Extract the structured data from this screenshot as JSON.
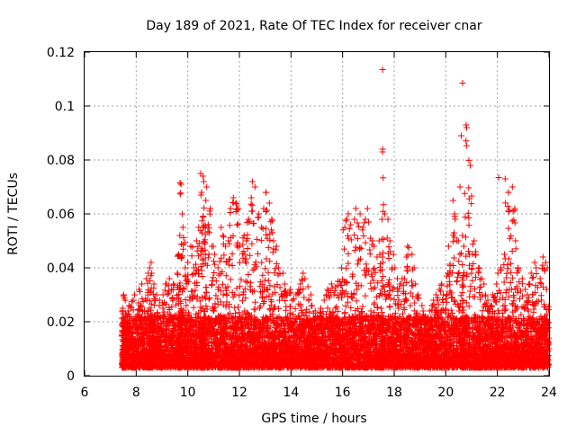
{
  "chart_data": {
    "type": "scatter",
    "title": "Day 189 of 2021, Rate Of TEC Index for receiver cnar",
    "xlabel": "GPS time / hours",
    "ylabel": "ROTI / TECUs",
    "xlim": [
      6,
      24
    ],
    "ylim": [
      0,
      0.12
    ],
    "x_ticks": [
      "6",
      "8",
      "10",
      "12",
      "14",
      "16",
      "18",
      "20",
      "22",
      "24"
    ],
    "y_ticks": [
      "0",
      "0.02",
      "0.04",
      "0.06",
      "0.08",
      "0.1",
      "0.12"
    ],
    "grid": true,
    "marker": "plus",
    "color": "#ff0000",
    "series": [
      {
        "x": [
          7.45,
          7.5,
          7.55,
          7.6,
          7.7,
          7.8,
          7.9,
          8.0,
          8.1,
          8.2,
          8.3,
          8.4,
          8.5,
          8.55,
          8.6,
          8.65,
          8.7,
          8.8,
          8.9,
          9.0,
          9.1,
          9.2,
          9.3,
          9.4,
          9.5,
          9.6,
          9.65,
          9.7,
          9.75,
          9.8,
          9.9,
          10.0,
          10.1,
          10.2,
          10.3,
          10.4,
          10.5,
          10.55,
          10.6,
          10.65,
          10.7,
          10.8,
          10.9,
          11.0,
          11.1,
          11.2,
          11.3,
          11.4,
          11.5,
          11.6,
          11.7,
          11.8,
          11.9,
          12.0,
          12.1,
          12.2,
          12.3,
          12.4,
          12.5,
          12.6,
          12.7,
          12.8,
          12.9,
          13.0,
          13.1,
          13.2,
          13.3,
          13.4,
          13.5,
          13.6,
          13.7,
          13.8,
          13.9,
          14.0,
          14.1,
          14.2,
          14.3,
          14.4,
          14.5,
          14.6,
          14.7,
          14.8,
          14.9,
          15.0,
          15.1,
          15.2,
          15.3,
          15.4,
          15.5,
          15.6,
          15.7,
          15.8,
          15.9,
          16.0,
          16.1,
          16.2,
          16.3,
          16.4,
          16.5,
          16.6,
          16.7,
          16.8,
          16.9,
          17.0,
          17.1,
          17.2,
          17.3,
          17.4,
          17.5,
          17.55,
          17.6,
          17.7,
          17.8,
          17.9,
          18.0,
          18.1,
          18.2,
          18.3,
          18.4,
          18.5,
          18.6,
          18.7,
          18.8,
          18.9,
          19.0,
          19.1,
          19.2,
          19.3,
          19.4,
          19.5,
          19.6,
          19.7,
          19.8,
          19.9,
          20.0,
          20.1,
          20.2,
          20.3,
          20.4,
          20.5,
          20.6,
          20.65,
          20.7,
          20.8,
          20.9,
          21.0,
          21.1,
          21.2,
          21.3,
          21.4,
          21.5,
          21.6,
          21.7,
          21.8,
          21.9,
          22.0,
          22.1,
          22.2,
          22.3,
          22.4,
          22.5,
          22.6,
          22.7,
          22.8,
          22.9,
          23.0,
          23.1,
          23.2,
          23.3,
          23.4,
          23.5,
          23.6,
          23.7,
          23.8,
          23.9,
          24.0
        ],
        "y_max": [
          0.025,
          0.03,
          0.028,
          0.024,
          0.026,
          0.028,
          0.03,
          0.027,
          0.032,
          0.034,
          0.036,
          0.038,
          0.04,
          0.042,
          0.038,
          0.034,
          0.03,
          0.026,
          0.028,
          0.03,
          0.034,
          0.036,
          0.032,
          0.034,
          0.038,
          0.045,
          0.052,
          0.071,
          0.06,
          0.055,
          0.04,
          0.042,
          0.048,
          0.04,
          0.05,
          0.055,
          0.068,
          0.074,
          0.072,
          0.065,
          0.07,
          0.062,
          0.048,
          0.045,
          0.04,
          0.055,
          0.052,
          0.048,
          0.05,
          0.062,
          0.066,
          0.064,
          0.062,
          0.048,
          0.052,
          0.05,
          0.058,
          0.066,
          0.072,
          0.07,
          0.06,
          0.055,
          0.062,
          0.068,
          0.064,
          0.058,
          0.05,
          0.048,
          0.04,
          0.038,
          0.034,
          0.03,
          0.032,
          0.028,
          0.03,
          0.032,
          0.034,
          0.038,
          0.036,
          0.033,
          0.03,
          0.026,
          0.024,
          0.022,
          0.025,
          0.028,
          0.03,
          0.032,
          0.034,
          0.03,
          0.033,
          0.035,
          0.04,
          0.055,
          0.058,
          0.06,
          0.056,
          0.058,
          0.062,
          0.06,
          0.055,
          0.058,
          0.062,
          0.057,
          0.05,
          0.048,
          0.044,
          0.05,
          0.058,
          0.084,
          0.06,
          0.058,
          0.05,
          0.045,
          0.04,
          0.036,
          0.034,
          0.036,
          0.044,
          0.048,
          0.045,
          0.04,
          0.034,
          0.03,
          0.026,
          0.024,
          0.022,
          0.024,
          0.026,
          0.028,
          0.03,
          0.032,
          0.034,
          0.03,
          0.038,
          0.048,
          0.065,
          0.06,
          0.05,
          0.045,
          0.052,
          0.048,
          0.093,
          0.092,
          0.078,
          0.05,
          0.046,
          0.04,
          0.036,
          0.034,
          0.03,
          0.028,
          0.026,
          0.03,
          0.034,
          0.038,
          0.04,
          0.045,
          0.073,
          0.068,
          0.07,
          0.062,
          0.05,
          0.04,
          0.036,
          0.032,
          0.03,
          0.034,
          0.038,
          0.042,
          0.04,
          0.036,
          0.044,
          0.042,
          0.04,
          0.043,
          0.045,
          0.048
        ],
        "outliers": [
          {
            "x": 17.55,
            "y": 0.1135
          },
          {
            "x": 17.55,
            "y": 0.083
          },
          {
            "x": 20.65,
            "y": 0.1085
          },
          {
            "x": 20.6,
            "y": 0.089
          },
          {
            "x": 20.55,
            "y": 0.07
          },
          {
            "x": 10.5,
            "y": 0.075
          },
          {
            "x": 9.7,
            "y": 0.0715
          },
          {
            "x": 22.05,
            "y": 0.0735
          }
        ]
      }
    ]
  }
}
